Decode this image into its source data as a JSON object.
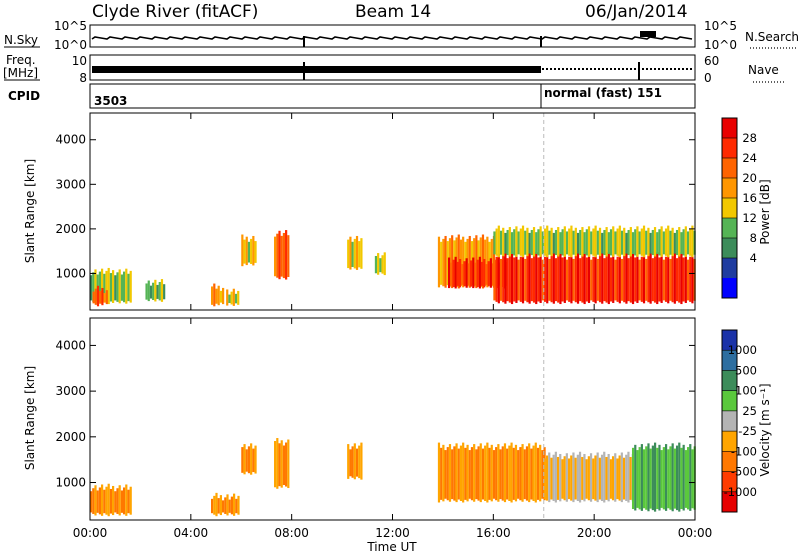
{
  "header": {
    "station": "Clyde River (fitACF)",
    "beam": "Beam 14",
    "date": "06/Jan/2014"
  },
  "strips": {
    "nsky_label": "N.Sky",
    "nsky_ticks": [
      "10^5",
      "10^0"
    ],
    "nsearch_label": "N.Search",
    "nsearch_ticks": [
      "10^5",
      "10^0"
    ],
    "freq_label_1": "Freq.",
    "freq_label_2": "[MHz]",
    "freq_ticks": [
      "10",
      "8"
    ],
    "nave_label": "Nave",
    "nave_ticks": [
      "60",
      "0"
    ],
    "cpid_label": "CPID",
    "cpid_text_1": "3503",
    "cpid_text_2": "normal (fast) 151"
  },
  "chart_data": [
    {
      "type": "heatmap",
      "panel": "power",
      "ylabel": "Slant Range [km]",
      "ylim": [
        180,
        4600
      ],
      "y_ticks": [
        "4000",
        "3000",
        "2000",
        "1000"
      ],
      "y_tick_values": [
        4000,
        3000,
        2000,
        1000
      ],
      "x_ticks": [
        "00:00",
        "04:00",
        "08:00",
        "12:00",
        "16:00",
        "20:00",
        "00:00"
      ],
      "x_tick_hours": [
        0,
        4,
        8,
        12,
        16,
        20,
        24
      ],
      "colorbar": {
        "label": "Power [dB]",
        "tick_labels": [
          "28",
          "24",
          "20",
          "16",
          "12",
          "8",
          "4"
        ],
        "colors": [
          "#e80000",
          "#ff2a00",
          "#ff6400",
          "#ff9600",
          "#f2c800",
          "#55b455",
          "#3c8c5a",
          "#1f3ca0",
          "#0000ff"
        ]
      },
      "echoes": [
        {
          "t0": 0.0,
          "t1": 1.6,
          "r0": 350,
          "r1": 1050,
          "v": 14
        },
        {
          "t0": 0.1,
          "t1": 0.7,
          "r0": 300,
          "r1": 650,
          "v": 24
        },
        {
          "t0": 2.2,
          "t1": 2.9,
          "r0": 400,
          "r1": 800,
          "v": 12
        },
        {
          "t0": 4.8,
          "t1": 5.3,
          "r0": 300,
          "r1": 700,
          "v": 20
        },
        {
          "t0": 5.4,
          "t1": 5.9,
          "r0": 300,
          "r1": 600,
          "v": 16
        },
        {
          "t0": 6.0,
          "t1": 6.6,
          "r0": 1200,
          "r1": 1800,
          "v": 18
        },
        {
          "t0": 7.3,
          "t1": 7.9,
          "r0": 900,
          "r1": 1900,
          "v": 24
        },
        {
          "t0": 10.2,
          "t1": 10.8,
          "r0": 1100,
          "r1": 1800,
          "v": 18
        },
        {
          "t0": 11.3,
          "t1": 11.7,
          "r0": 1000,
          "r1": 1400,
          "v": 14
        },
        {
          "t0": 13.8,
          "t1": 16.0,
          "r0": 700,
          "r1": 1800,
          "v": 20
        },
        {
          "t0": 14.2,
          "t1": 16.5,
          "r0": 700,
          "r1": 1300,
          "v": 27
        },
        {
          "t0": 16.0,
          "t1": 24.0,
          "r0": 350,
          "r1": 1400,
          "v": 28
        },
        {
          "t0": 16.0,
          "t1": 24.0,
          "r0": 1400,
          "r1": 2000,
          "v": 14
        }
      ]
    },
    {
      "type": "heatmap",
      "panel": "velocity",
      "ylabel": "Slant Range [km]",
      "ylim": [
        180,
        4600
      ],
      "y_ticks": [
        "4000",
        "3000",
        "2000",
        "1000"
      ],
      "y_tick_values": [
        4000,
        3000,
        2000,
        1000
      ],
      "x_ticks": [
        "00:00",
        "04:00",
        "08:00",
        "12:00",
        "16:00",
        "20:00",
        "00:00"
      ],
      "x_tick_hours": [
        0,
        4,
        8,
        12,
        16,
        20,
        24
      ],
      "xlabel": "Time UT",
      "colorbar": {
        "label": "Velocity [m s⁻¹]",
        "tick_labels": [
          "1000",
          "500",
          "100",
          "25",
          "-25",
          "-100",
          "-500",
          "-1000"
        ],
        "colors": [
          "#1a32a8",
          "#2d6ea0",
          "#3c8c5a",
          "#5ac83c",
          "#b4b4b4",
          "#ffa500",
          "#ff7800",
          "#ff3c00",
          "#e60000"
        ]
      },
      "echoes": [
        {
          "t0": 0.0,
          "t1": 1.6,
          "r0": 300,
          "r1": 900,
          "v": -100
        },
        {
          "t0": 4.8,
          "t1": 5.9,
          "r0": 300,
          "r1": 700,
          "v": -100
        },
        {
          "t0": 6.0,
          "t1": 6.6,
          "r0": 1200,
          "r1": 1800,
          "v": -100
        },
        {
          "t0": 7.3,
          "t1": 7.9,
          "r0": 900,
          "r1": 1900,
          "v": -100
        },
        {
          "t0": 10.2,
          "t1": 10.8,
          "r0": 1100,
          "r1": 1800,
          "v": -100
        },
        {
          "t0": 13.8,
          "t1": 18.0,
          "r0": 600,
          "r1": 1800,
          "v": -100
        },
        {
          "t0": 18.0,
          "t1": 21.5,
          "r0": 600,
          "r1": 1600,
          "v": -25
        },
        {
          "t0": 21.5,
          "t1": 24.0,
          "r0": 400,
          "r1": 1800,
          "v": 100
        }
      ]
    }
  ]
}
